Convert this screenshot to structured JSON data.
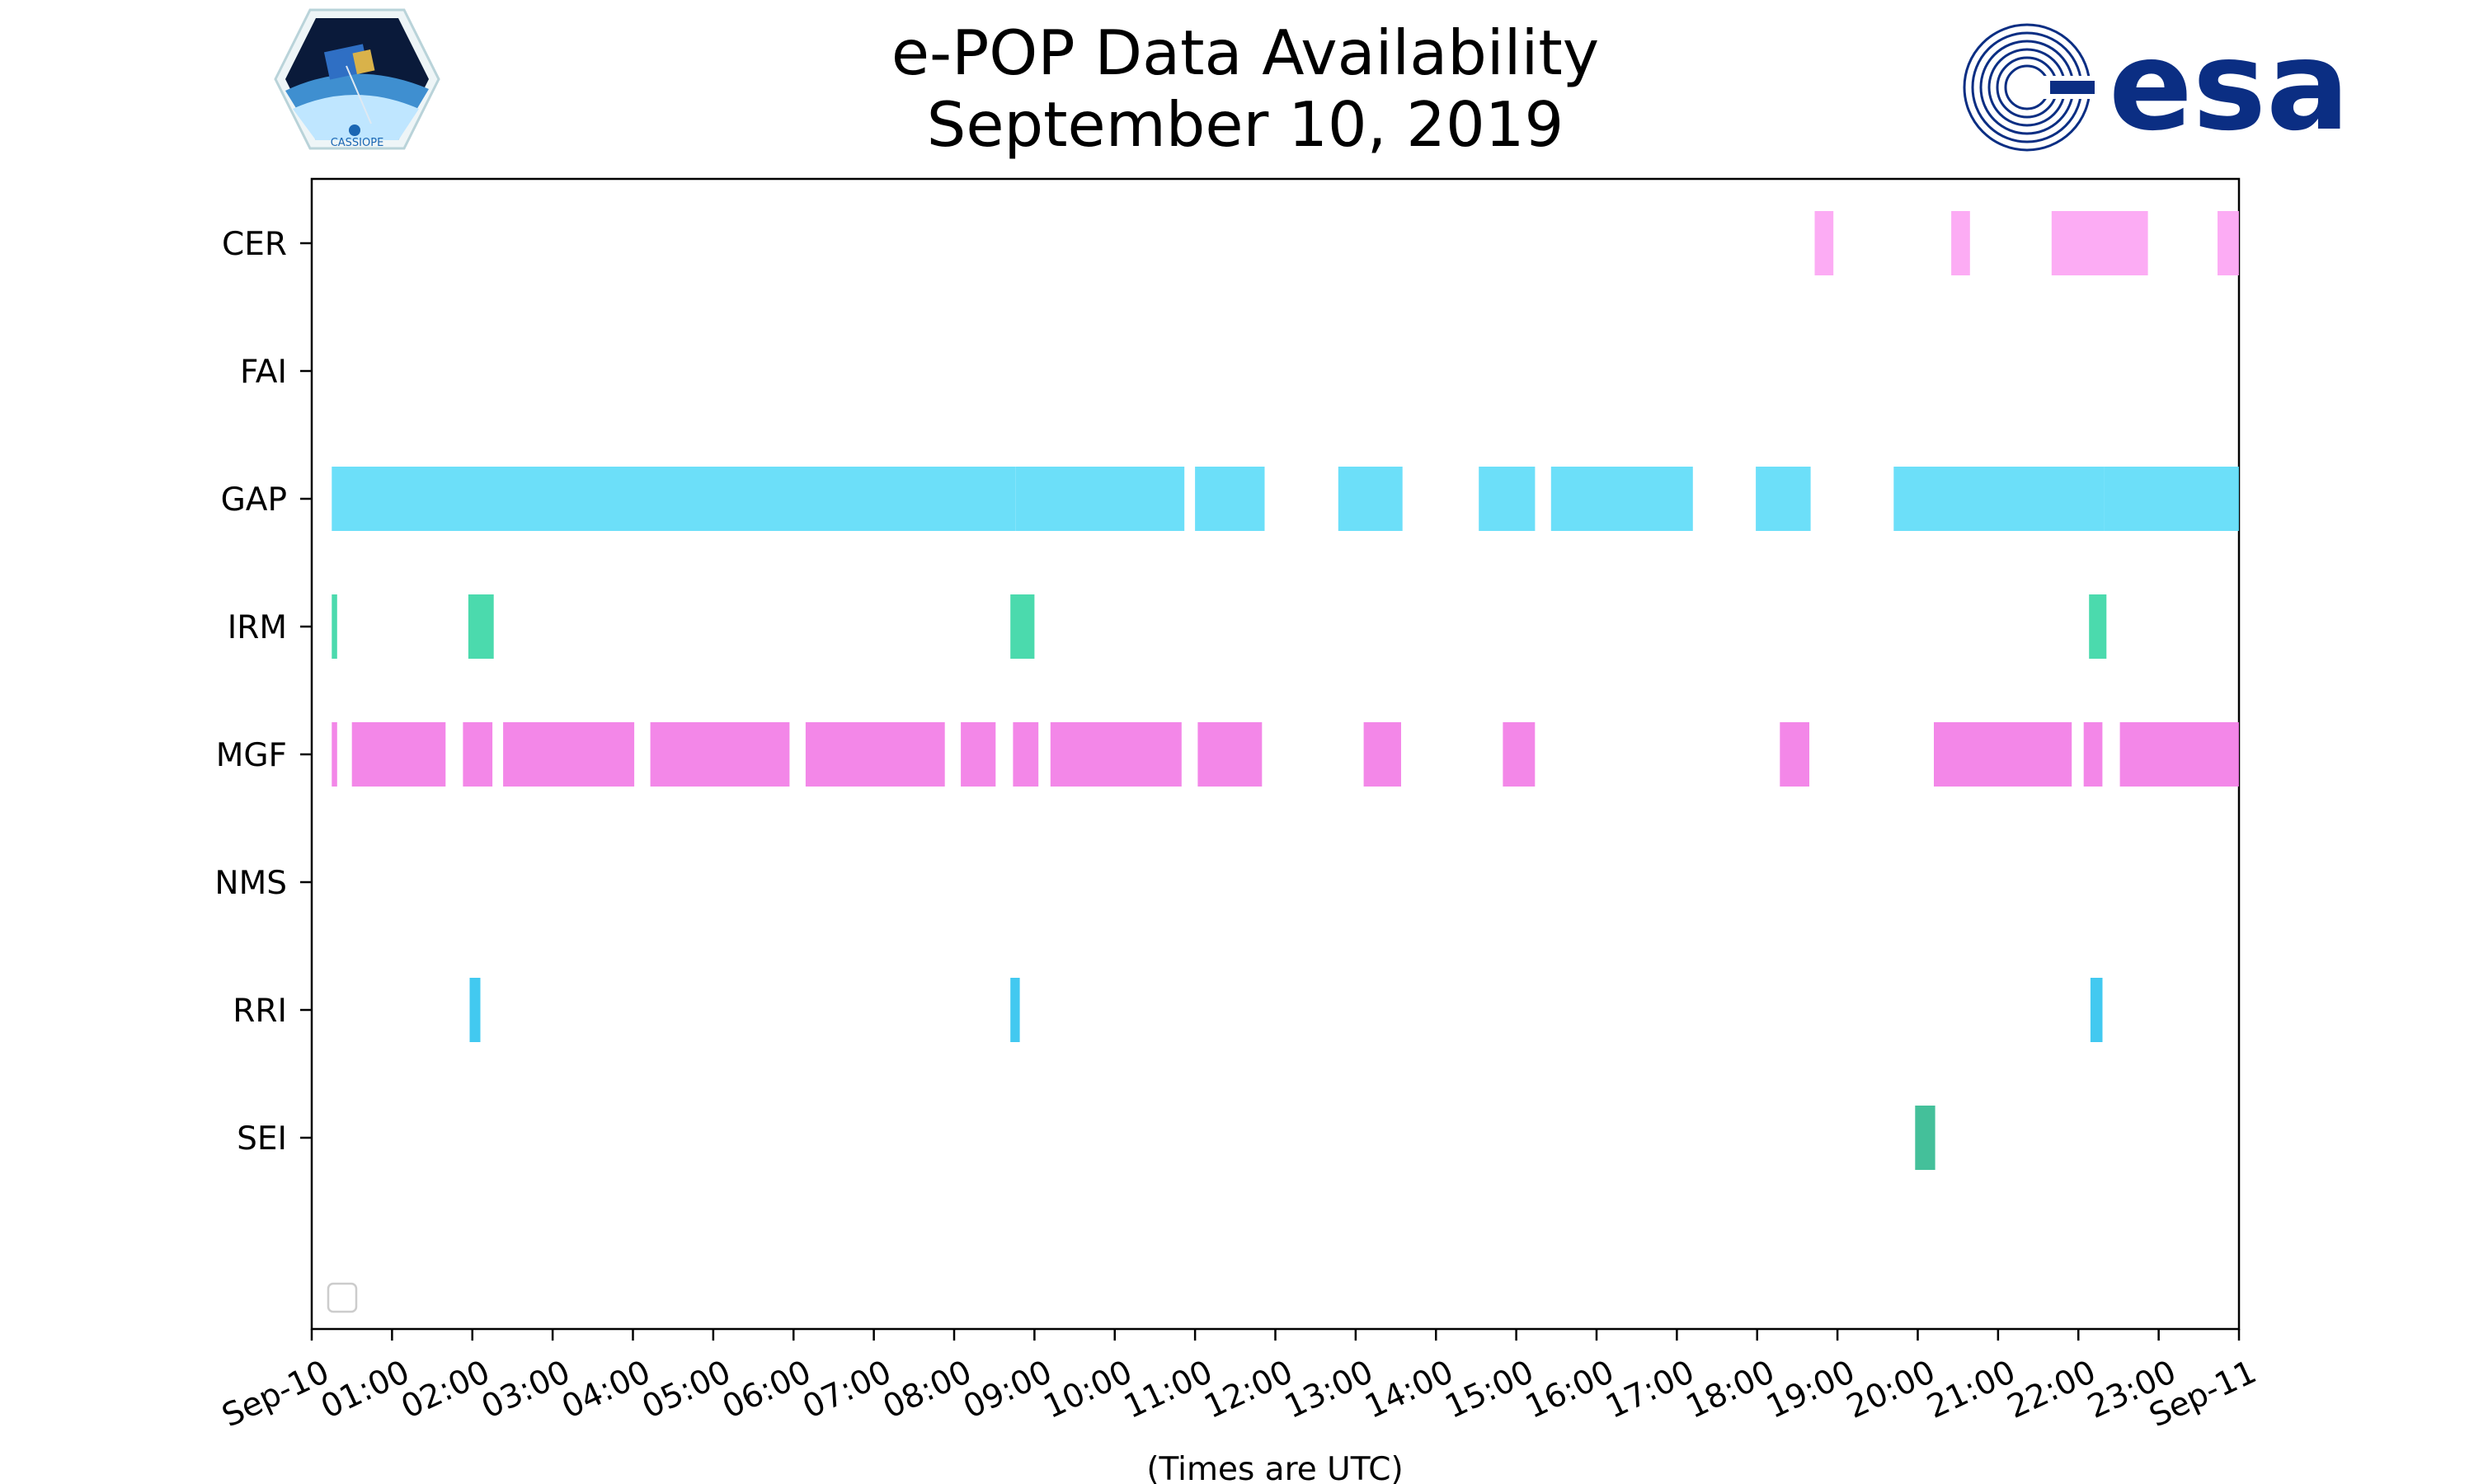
{
  "title_line1": "e-POP Data Availability",
  "title_line2": "September 10, 2019",
  "logos": {
    "left": {
      "icon": "cassiope-satellite-hexagon-icon",
      "text": "CASSIOPE"
    },
    "right": {
      "icon": "esa-logo-icon",
      "text": "esa",
      "color": "#0b2e83"
    }
  },
  "chart_data": {
    "type": "timeline",
    "title": "e-POP Data Availability September 10, 2019",
    "xlabel": "(Times are UTC)",
    "ylabel": "",
    "xlim": [
      "2019-09-10 00:00",
      "2019-09-11 00:00"
    ],
    "x_tick_labels": [
      "Sep-10",
      "01:00",
      "02:00",
      "03:00",
      "04:00",
      "05:00",
      "06:00",
      "07:00",
      "08:00",
      "09:00",
      "10:00",
      "11:00",
      "12:00",
      "13:00",
      "14:00",
      "15:00",
      "16:00",
      "17:00",
      "18:00",
      "19:00",
      "20:00",
      "21:00",
      "22:00",
      "23:00",
      "Sep-11"
    ],
    "categories": [
      "CER",
      "FAI",
      "GAP",
      "IRM",
      "MGF",
      "NMS",
      "RRI",
      "SEI"
    ],
    "legend": "lower-left (empty)",
    "grid": false,
    "series": [
      {
        "name": "CER",
        "color": "#fca3f3",
        "intervals": [
          [
            "18:43",
            "18:57"
          ],
          [
            "20:25",
            "20:39"
          ],
          [
            "21:40",
            "22:52"
          ],
          [
            "23:44",
            "24:00"
          ]
        ]
      },
      {
        "name": "FAI",
        "color": "#cccccc",
        "intervals": []
      },
      {
        "name": "GAP",
        "color": "#5cdcf8",
        "intervals": [
          [
            "00:15",
            "08:46"
          ],
          [
            "08:46",
            "10:52"
          ],
          [
            "11:00",
            "11:52"
          ],
          [
            "12:47",
            "13:35"
          ],
          [
            "14:32",
            "15:14"
          ],
          [
            "15:26",
            "17:12"
          ],
          [
            "17:59",
            "18:40"
          ],
          [
            "19:42",
            "22:19"
          ],
          [
            "22:19",
            "24:00"
          ]
        ]
      },
      {
        "name": "IRM",
        "color": "#37d6a4",
        "intervals": [
          [
            "00:15",
            "00:19"
          ],
          [
            "01:57",
            "02:16"
          ],
          [
            "08:42",
            "09:00"
          ],
          [
            "22:08",
            "22:21"
          ]
        ]
      },
      {
        "name": "MGF",
        "color": "#f27ae6",
        "intervals": [
          [
            "00:15",
            "00:19"
          ],
          [
            "00:30",
            "01:40"
          ],
          [
            "01:53",
            "02:15"
          ],
          [
            "02:23",
            "04:01"
          ],
          [
            "04:13",
            "05:57"
          ],
          [
            "06:09",
            "07:53"
          ],
          [
            "08:05",
            "08:31"
          ],
          [
            "08:44",
            "09:03"
          ],
          [
            "09:12",
            "10:50"
          ],
          [
            "11:02",
            "11:50"
          ],
          [
            "13:06",
            "13:34"
          ],
          [
            "14:50",
            "15:14"
          ],
          [
            "18:17",
            "18:39"
          ],
          [
            "20:12",
            "21:55"
          ],
          [
            "22:04",
            "22:18"
          ],
          [
            "22:31",
            "24:00"
          ]
        ]
      },
      {
        "name": "NMS",
        "color": "#cccccc",
        "intervals": []
      },
      {
        "name": "RRI",
        "color": "#2ec3ee",
        "intervals": [
          [
            "01:58",
            "02:06"
          ],
          [
            "08:42",
            "08:49"
          ],
          [
            "22:09",
            "22:18"
          ]
        ]
      },
      {
        "name": "SEI",
        "color": "#30b98f",
        "intervals": [
          [
            "19:58",
            "20:13"
          ]
        ]
      }
    ]
  }
}
